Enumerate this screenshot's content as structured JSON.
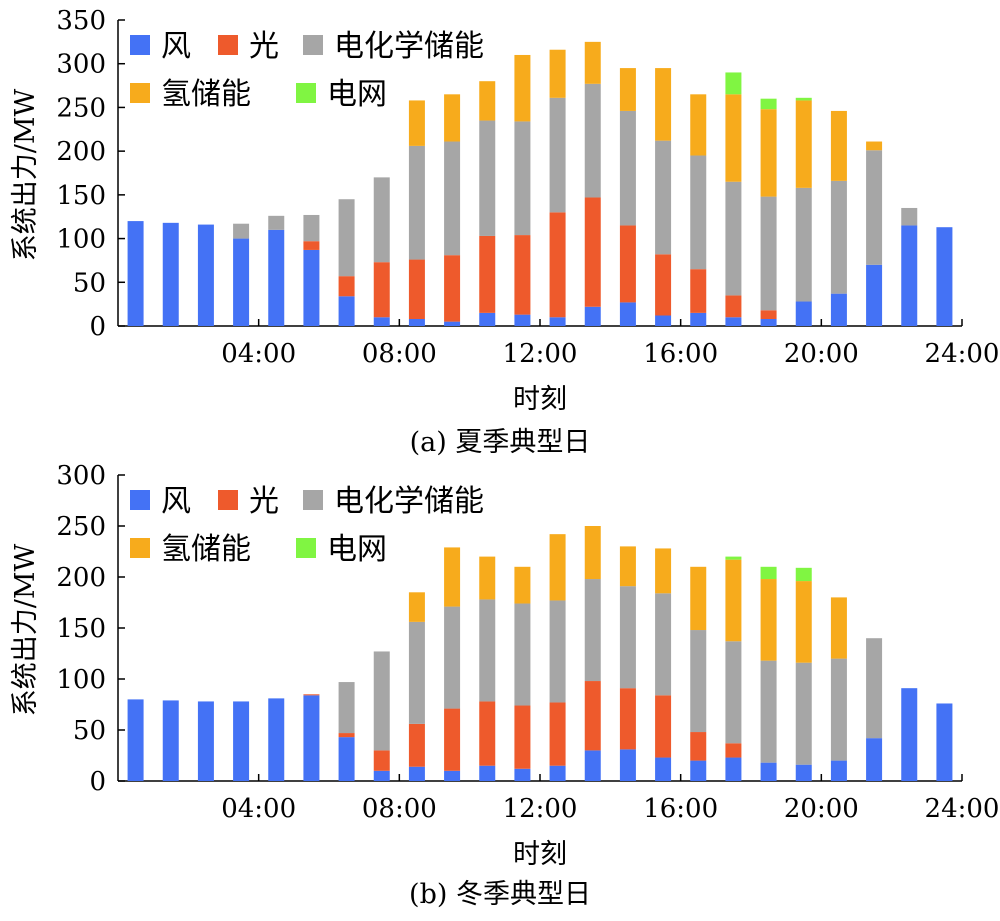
{
  "legend_labels": {
    "wind": "风",
    "solar": "光",
    "battery": "电化学储能",
    "hydrogen": "氢储能",
    "grid": "电网"
  },
  "colors": {
    "wind": "#4472f5",
    "solar": "#ee5a2c",
    "battery": "#a6a6a6",
    "hydrogen": "#f7ab1c",
    "grid": "#80f542"
  },
  "chart_data": [
    {
      "type": "bar",
      "stacked": true,
      "title": "",
      "caption": "(a) 夏季典型日",
      "xlabel": "时刻",
      "ylabel": "系统出力/MW",
      "ylim": [
        0,
        350
      ],
      "yticks": [
        0,
        50,
        100,
        150,
        200,
        250,
        300,
        350
      ],
      "xtick_labels": [
        "04:00",
        "08:00",
        "12:00",
        "16:00",
        "20:00",
        "24:00"
      ],
      "xtick_hours": [
        4,
        8,
        12,
        16,
        20,
        24
      ],
      "legend_position": "top-left",
      "x": [
        1,
        2,
        3,
        4,
        5,
        6,
        7,
        8,
        9,
        10,
        11,
        12,
        13,
        14,
        15,
        16,
        17,
        18,
        19,
        20,
        21,
        22,
        23,
        24
      ],
      "series": [
        {
          "key": "wind",
          "name": "风",
          "values": [
            120,
            118,
            116,
            100,
            110,
            87,
            34,
            10,
            8,
            5,
            15,
            13,
            10,
            22,
            27,
            12,
            15,
            10,
            8,
            28,
            37,
            70,
            115,
            113
          ]
        },
        {
          "key": "solar",
          "name": "光",
          "values": [
            0,
            0,
            0,
            0,
            0,
            10,
            23,
            63,
            68,
            76,
            88,
            91,
            120,
            125,
            88,
            70,
            50,
            25,
            10,
            0,
            0,
            0,
            0,
            0
          ]
        },
        {
          "key": "battery",
          "name": "电化学储能",
          "values": [
            0,
            0,
            0,
            17,
            16,
            30,
            88,
            97,
            130,
            130,
            132,
            130,
            131,
            130,
            131,
            130,
            130,
            130,
            130,
            130,
            129,
            131,
            20,
            0
          ]
        },
        {
          "key": "hydrogen",
          "name": "氢储能",
          "values": [
            0,
            0,
            0,
            0,
            0,
            0,
            0,
            0,
            52,
            54,
            45,
            76,
            55,
            48,
            49,
            83,
            70,
            100,
            100,
            100,
            80,
            10,
            0,
            0
          ]
        },
        {
          "key": "grid",
          "name": "电网",
          "values": [
            0,
            0,
            0,
            0,
            0,
            0,
            0,
            0,
            0,
            0,
            0,
            0,
            0,
            0,
            0,
            0,
            0,
            25,
            12,
            3,
            0,
            0,
            0,
            0
          ]
        }
      ]
    },
    {
      "type": "bar",
      "stacked": true,
      "title": "",
      "caption": "(b) 冬季典型日",
      "xlabel": "时刻",
      "ylabel": "系统出力/MW",
      "ylim": [
        0,
        300
      ],
      "yticks": [
        0,
        50,
        100,
        150,
        200,
        250,
        300
      ],
      "xtick_labels": [
        "04:00",
        "08:00",
        "12:00",
        "16:00",
        "20:00",
        "24:00"
      ],
      "xtick_hours": [
        4,
        8,
        12,
        16,
        20,
        24
      ],
      "legend_position": "top-left",
      "x": [
        1,
        2,
        3,
        4,
        5,
        6,
        7,
        8,
        9,
        10,
        11,
        12,
        13,
        14,
        15,
        16,
        17,
        18,
        19,
        20,
        21,
        22,
        23,
        24
      ],
      "series": [
        {
          "key": "wind",
          "name": "风",
          "values": [
            80,
            79,
            78,
            78,
            81,
            84,
            43,
            10,
            14,
            10,
            15,
            12,
            15,
            30,
            31,
            23,
            20,
            23,
            18,
            16,
            20,
            42,
            91,
            76
          ]
        },
        {
          "key": "solar",
          "name": "光",
          "values": [
            0,
            0,
            0,
            0,
            0,
            1,
            4,
            20,
            42,
            61,
            63,
            62,
            62,
            68,
            60,
            61,
            28,
            14,
            0,
            0,
            0,
            0,
            0,
            0
          ]
        },
        {
          "key": "battery",
          "name": "电化学储能",
          "values": [
            0,
            0,
            0,
            0,
            0,
            0,
            50,
            97,
            100,
            100,
            100,
            100,
            100,
            100,
            100,
            100,
            100,
            100,
            100,
            100,
            100,
            98,
            0,
            0
          ]
        },
        {
          "key": "hydrogen",
          "name": "氢储能",
          "values": [
            0,
            0,
            0,
            0,
            0,
            0,
            0,
            0,
            29,
            58,
            42,
            36,
            65,
            52,
            39,
            44,
            62,
            80,
            80,
            80,
            60,
            0,
            0,
            0
          ]
        },
        {
          "key": "grid",
          "name": "电网",
          "values": [
            0,
            0,
            0,
            0,
            0,
            0,
            0,
            0,
            0,
            0,
            0,
            0,
            0,
            0,
            0,
            0,
            0,
            3,
            12,
            13,
            0,
            0,
            0,
            0
          ]
        }
      ]
    }
  ]
}
